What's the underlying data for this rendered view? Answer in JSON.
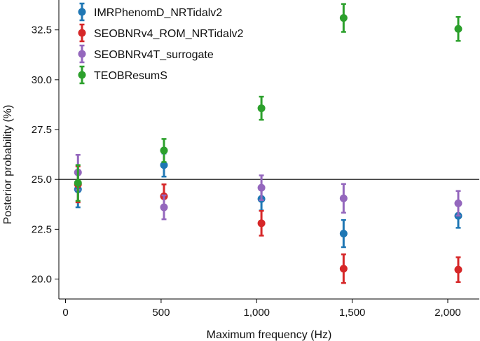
{
  "chart_data": {
    "type": "scatter",
    "title": "",
    "xlabel": "Maximum frequency (Hz)",
    "ylabel": "Posterior probability (%)",
    "xlim": [
      -35,
      2165
    ],
    "ylim": [
      19.0,
      34.0
    ],
    "xticks": [
      0,
      500,
      1000,
      1500,
      2000
    ],
    "xtick_labels": [
      "0",
      "500",
      "1,000",
      "1,500",
      "2,000"
    ],
    "yticks": [
      20.0,
      22.5,
      25.0,
      27.5,
      30.0,
      32.5
    ],
    "ytick_labels": [
      "20.0",
      "22.5",
      "25.0",
      "27.5",
      "30.0",
      "32.5"
    ],
    "reference_line": 25.0,
    "error_bars": true,
    "grid": false,
    "legend_position": "top-left",
    "series": [
      {
        "name": "IMRPhenomD_NRTidalv2",
        "color": "#1f77b4",
        "x": [
          65,
          515,
          1025,
          1455,
          2055
        ],
        "y": [
          24.5,
          25.72,
          24.02,
          22.28,
          23.17
        ],
        "err": [
          0.9,
          0.58,
          0.58,
          0.68,
          0.6
        ]
      },
      {
        "name": "SEOBNRv4_ROM_NRTidalv2",
        "color": "#d62728",
        "x": [
          65,
          515,
          1025,
          1455,
          2055
        ],
        "y": [
          24.75,
          24.15,
          22.8,
          20.52,
          20.47
        ],
        "err": [
          0.9,
          0.6,
          0.62,
          0.72,
          0.62
        ]
      },
      {
        "name": "SEOBNRv4T_surrogate",
        "color": "#9467bd",
        "x": [
          65,
          515,
          1025,
          1455,
          2055
        ],
        "y": [
          25.35,
          23.6,
          24.58,
          24.05,
          23.8
        ],
        "err": [
          0.88,
          0.6,
          0.62,
          0.72,
          0.62
        ]
      },
      {
        "name": "TEOBResumS",
        "color": "#2ca02c",
        "x": [
          65,
          515,
          1025,
          1455,
          2055
        ],
        "y": [
          24.82,
          26.45,
          28.57,
          33.1,
          32.55
        ],
        "err": [
          0.9,
          0.58,
          0.58,
          0.7,
          0.6
        ]
      }
    ]
  }
}
